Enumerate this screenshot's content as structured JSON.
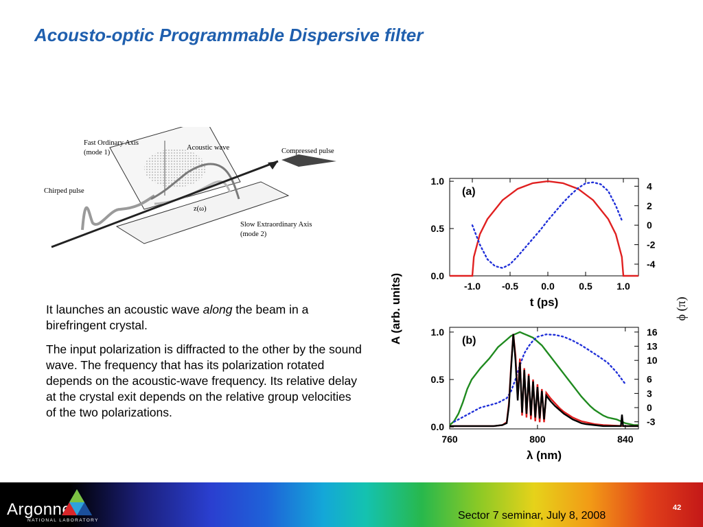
{
  "title": "Acousto-optic Programmable Dispersive filter",
  "diagram": {
    "labels": {
      "fast_axis": [
        "Fast Ordinary Axis",
        "(mode 1)"
      ],
      "acoustic": "Acoustic wave",
      "compressed": "Compressed pulse",
      "chirped": "Chirped pulse",
      "z": "z(ω)",
      "slow_axis": [
        "Slow Extraordinary Axis",
        "(mode 2)"
      ]
    }
  },
  "text": {
    "p1_before": "It launches an acoustic wave ",
    "p1_em": "along",
    "p1_after": " the beam in a birefringent crystal.",
    "p2": "The input polarization is diffracted to the other by the sound wave. The frequency that has its polarization rotated depends on the acoustic-wave frequency. Its relative delay at the crystal exit depends on the relative group velocities of the two polarizations."
  },
  "colors": {
    "title": "#1f5fae",
    "red": "#e02020",
    "blue": "#1f2fd8",
    "green": "#1f8a1f",
    "black": "#000000"
  },
  "chart_data": [
    {
      "type": "line",
      "panel_label": "(a)",
      "xlabel": "t (ps)",
      "ylabel": "A (arb. units)",
      "y2label": "ϕ (π)",
      "xlim": [
        -1.3,
        1.2
      ],
      "ylim": [
        0.0,
        1.03
      ],
      "y2lim": [
        -5.2,
        4.8
      ],
      "xticks": [
        "-1.0",
        "-0.5",
        "0.0",
        "0.5",
        "1.0"
      ],
      "xtick_values": [
        -1.0,
        -0.5,
        0.0,
        0.5,
        1.0
      ],
      "yticks": [
        "0.0",
        "0.5",
        "1.0"
      ],
      "ytick_values": [
        0.0,
        0.5,
        1.0
      ],
      "y2ticks": [
        "4",
        "2",
        "0",
        "-2",
        "-4"
      ],
      "y2tick_values": [
        4,
        2,
        0,
        -2,
        -4
      ],
      "series": [
        {
          "style": "solid",
          "color": "#e02020",
          "axis": "left",
          "x": [
            -1.3,
            -1.0,
            -0.98,
            -0.9,
            -0.8,
            -0.6,
            -0.4,
            -0.2,
            0.0,
            0.2,
            0.4,
            0.6,
            0.8,
            0.9,
            0.98,
            1.0,
            1.2
          ],
          "y": [
            0.0,
            0.0,
            0.2,
            0.44,
            0.6,
            0.8,
            0.92,
            0.98,
            1.0,
            0.98,
            0.92,
            0.8,
            0.6,
            0.44,
            0.2,
            0.0,
            0.0
          ]
        },
        {
          "style": "dotted",
          "color": "#1f2fd8",
          "axis": "right",
          "x": [
            -1.0,
            -0.9,
            -0.8,
            -0.7,
            -0.6,
            -0.5,
            -0.4,
            -0.3,
            -0.2,
            -0.1,
            0.0,
            0.1,
            0.2,
            0.3,
            0.4,
            0.5,
            0.6,
            0.7,
            0.8,
            0.9,
            0.98
          ],
          "y": [
            0.0,
            -2.0,
            -3.5,
            -4.2,
            -4.4,
            -4.0,
            -3.2,
            -2.3,
            -1.4,
            -0.5,
            0.5,
            1.4,
            2.3,
            3.1,
            3.8,
            4.3,
            4.4,
            4.2,
            3.5,
            2.0,
            0.5
          ]
        }
      ]
    },
    {
      "type": "line",
      "panel_label": "(b)",
      "xlabel": "λ (nm)",
      "xlim": [
        760,
        846
      ],
      "ylim": [
        -0.02,
        1.05
      ],
      "y2lim": [
        -4.5,
        17
      ],
      "xticks": [
        "760",
        "800",
        "840"
      ],
      "xtick_values": [
        760,
        800,
        840
      ],
      "yticks": [
        "0.0",
        "0.5",
        "1.0"
      ],
      "ytick_values": [
        0.0,
        0.5,
        1.0
      ],
      "y2ticks": [
        "16",
        "13",
        "10",
        "6",
        "3",
        "0",
        "-3"
      ],
      "y2tick_values": [
        16,
        13,
        10,
        6,
        3,
        0,
        -3
      ],
      "series": [
        {
          "style": "solid",
          "color": "#1f8a1f",
          "axis": "left",
          "x": [
            760,
            762,
            764,
            766,
            768,
            770,
            772,
            774,
            776,
            778,
            780,
            782,
            784,
            786,
            788,
            790,
            792,
            794,
            796,
            798,
            800,
            802,
            804,
            806,
            808,
            810,
            812,
            814,
            816,
            818,
            820,
            822,
            824,
            826,
            828,
            830,
            832,
            834,
            836,
            838,
            840,
            842,
            844,
            846
          ],
          "y": [
            0.02,
            0.06,
            0.14,
            0.26,
            0.4,
            0.5,
            0.56,
            0.62,
            0.67,
            0.72,
            0.78,
            0.84,
            0.88,
            0.92,
            0.96,
            0.98,
            1.0,
            0.98,
            0.96,
            0.94,
            0.9,
            0.86,
            0.8,
            0.74,
            0.68,
            0.62,
            0.56,
            0.5,
            0.44,
            0.38,
            0.32,
            0.27,
            0.22,
            0.18,
            0.15,
            0.12,
            0.1,
            0.09,
            0.08,
            0.06,
            0.04,
            0.03,
            0.02,
            0.02
          ]
        },
        {
          "style": "dotted",
          "color": "#1f2fd8",
          "axis": "right",
          "x": [
            762,
            766,
            770,
            774,
            778,
            782,
            784,
            786,
            788,
            790,
            792,
            794,
            796,
            798,
            800,
            804,
            808,
            812,
            816,
            820,
            824,
            828,
            832,
            836,
            840
          ],
          "y": [
            -3.0,
            -2.0,
            -1.0,
            0.0,
            0.5,
            1.0,
            1.5,
            2.0,
            3.5,
            6.0,
            9.0,
            11.5,
            13.0,
            14.2,
            15.0,
            15.5,
            15.4,
            15.0,
            14.2,
            13.2,
            12.0,
            10.8,
            9.5,
            7.5,
            5.0
          ]
        },
        {
          "style": "solid",
          "color": "#e02020",
          "axis": "left",
          "x": [
            760,
            770,
            780,
            784,
            786,
            787,
            788,
            789,
            790,
            791,
            792,
            793,
            794,
            795,
            796,
            797,
            798,
            799,
            800,
            801,
            802,
            803,
            804,
            806,
            808,
            810,
            812,
            814,
            816,
            818,
            820,
            822,
            826,
            830,
            840,
            846
          ],
          "y": [
            0.01,
            0.01,
            0.01,
            0.02,
            0.05,
            0.25,
            0.65,
            0.98,
            0.75,
            0.3,
            0.72,
            0.12,
            0.62,
            0.1,
            0.56,
            0.08,
            0.5,
            0.06,
            0.45,
            0.05,
            0.4,
            0.05,
            0.36,
            0.3,
            0.25,
            0.2,
            0.16,
            0.13,
            0.1,
            0.08,
            0.06,
            0.05,
            0.03,
            0.02,
            0.01,
            0.01
          ]
        },
        {
          "style": "solid",
          "color": "#000000",
          "axis": "left",
          "x": [
            760,
            770,
            780,
            784,
            786,
            787,
            788,
            789,
            790,
            791,
            792,
            793,
            794,
            795,
            796,
            797,
            798,
            799,
            800,
            801,
            802,
            803,
            804,
            806,
            808,
            810,
            812,
            814,
            816,
            818,
            820,
            822,
            826,
            830,
            838,
            838.5,
            839,
            846
          ],
          "y": [
            0.01,
            0.01,
            0.01,
            0.02,
            0.04,
            0.22,
            0.62,
            0.98,
            0.7,
            0.28,
            0.68,
            0.15,
            0.6,
            0.14,
            0.54,
            0.12,
            0.48,
            0.1,
            0.42,
            0.09,
            0.38,
            0.08,
            0.33,
            0.27,
            0.22,
            0.18,
            0.14,
            0.11,
            0.08,
            0.06,
            0.04,
            0.03,
            0.02,
            0.01,
            0.01,
            0.13,
            0.01,
            0.01
          ]
        }
      ]
    }
  ],
  "footer": {
    "logo": "Argonne",
    "logo_sub": "NATIONAL LABORATORY",
    "caption": "Sector 7 seminar, July 8, 2008",
    "page": "42"
  }
}
